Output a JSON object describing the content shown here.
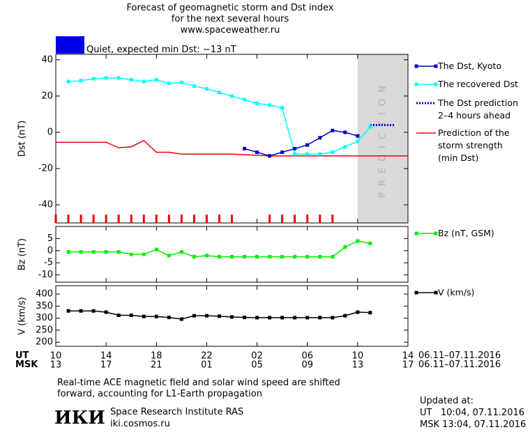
{
  "header": {
    "title_lines": [
      "Forecast of geomagnetic storm and Dst index",
      "for the next several hours",
      "www.spaceweather.ru"
    ],
    "status": "Quiet, expected min Dst: −13 nT",
    "status_color": "#0000ee"
  },
  "chart_data": [
    {
      "type": "line",
      "ylabel": "Dst (nT)",
      "xlim": [
        0,
        28
      ],
      "ylim": [
        -50,
        43
      ],
      "yticks": [
        -40,
        -20,
        0,
        20,
        40
      ],
      "shade": {
        "x": [
          24,
          28
        ],
        "label": "PREDICTION",
        "color": "#d9d9d9"
      },
      "hour_markers": {
        "color": "#ee0000",
        "x": [
          0,
          1,
          2,
          3,
          4,
          5,
          6,
          7,
          8,
          9,
          10,
          11,
          12,
          13,
          14,
          17,
          18,
          19,
          20,
          21,
          22
        ]
      },
      "series": [
        {
          "name": "The Dst, Kyoto",
          "color": "#0000cc",
          "markers": true,
          "style": "solid",
          "x": [
            15,
            16,
            17,
            18,
            19,
            20,
            21,
            22,
            23,
            24
          ],
          "values": [
            -9,
            -11,
            -13,
            -11,
            -9,
            -7,
            -3,
            1,
            0,
            -2
          ]
        },
        {
          "name": "The recovered Dst",
          "color": "#00ffff",
          "markers": true,
          "style": "solid",
          "x": [
            1,
            2,
            3,
            4,
            5,
            6,
            7,
            8,
            9,
            10,
            11,
            12,
            13,
            14,
            15,
            16,
            17,
            18,
            19,
            20,
            21,
            22,
            23,
            24,
            25
          ],
          "values": [
            28,
            28.5,
            29.5,
            30,
            30,
            29,
            28,
            29,
            27,
            27.5,
            25.5,
            24,
            22,
            20,
            18,
            16,
            15,
            13.5,
            -12,
            -12,
            -12,
            -11,
            -8,
            -5,
            3
          ]
        },
        {
          "name": "The Dst prediction\n2–4 hours ahead",
          "color": "#0000cc",
          "markers": false,
          "style": "dotted",
          "x": [
            25,
            27
          ],
          "values": [
            4,
            4
          ]
        },
        {
          "name": "Prediction of the\nstorm strength\n(min Dst)",
          "color": "#ee0000",
          "markers": false,
          "style": "solid",
          "x": [
            0,
            4,
            5,
            6,
            7,
            8,
            9,
            10,
            14,
            17,
            28
          ],
          "values": [
            -5.5,
            -5.5,
            -8.5,
            -8,
            -4.5,
            -11,
            -11,
            -12,
            -12,
            -13,
            -13
          ]
        }
      ]
    },
    {
      "type": "line",
      "ylabel": "Bz (nT)",
      "xlim": [
        0,
        28
      ],
      "ylim": [
        -13,
        10
      ],
      "yticks": [
        -10,
        -5,
        0,
        5
      ],
      "series": [
        {
          "name": "Bz (nT, GSM)",
          "color": "#00ee00",
          "markers": true,
          "style": "solid",
          "x": [
            1,
            2,
            3,
            4,
            5,
            6,
            7,
            8,
            9,
            10,
            11,
            12,
            13,
            14,
            15,
            16,
            17,
            18,
            19,
            20,
            21,
            22,
            23,
            24,
            25
          ],
          "values": [
            -0.5,
            -0.5,
            -0.5,
            -0.5,
            -0.5,
            -1.5,
            -1.5,
            0.5,
            -2,
            -0.5,
            -2.5,
            -2,
            -2.5,
            -2.5,
            -2.5,
            -2.5,
            -2.5,
            -2.5,
            -2.5,
            -2.5,
            -2.5,
            -2.5,
            1.5,
            4,
            3
          ]
        }
      ]
    },
    {
      "type": "line",
      "ylabel": "V (km/s)",
      "xlim": [
        0,
        28
      ],
      "ylim": [
        183,
        435
      ],
      "yticks": [
        200,
        250,
        300,
        350,
        400
      ],
      "xticks": [
        {
          "value": 0,
          "label": "10"
        },
        {
          "value": 4,
          "label": "14"
        },
        {
          "value": 8,
          "label": "18"
        },
        {
          "value": 12,
          "label": "22"
        },
        {
          "value": 16,
          "label": "02"
        },
        {
          "value": 20,
          "label": "06"
        },
        {
          "value": 24,
          "label": "10"
        },
        {
          "value": 28,
          "label": "14"
        }
      ],
      "msk_ticks": [
        "13",
        "17",
        "21",
        "01",
        "05",
        "09",
        "13",
        "17"
      ],
      "series": [
        {
          "name": "V (km/s)",
          "color": "#000000",
          "markers": true,
          "style": "solid",
          "x": [
            1,
            2,
            3,
            4,
            5,
            6,
            7,
            8,
            9,
            10,
            11,
            12,
            13,
            14,
            15,
            16,
            17,
            18,
            19,
            20,
            21,
            22,
            23,
            24,
            25
          ],
          "values": [
            330,
            330,
            330,
            325,
            312,
            312,
            307,
            307,
            303,
            296,
            310,
            310,
            308,
            305,
            303,
            302,
            302,
            302,
            302,
            302,
            302,
            302,
            310,
            325,
            323
          ]
        }
      ]
    }
  ],
  "time_axis": {
    "ut_label": "UT",
    "msk_label": "MSK",
    "date_range": "06.11–07.11.2016"
  },
  "footer": {
    "note": "Real-time ACE magnetic field and solar wind speed are shifted\nforward, accounting for L1-Earth propagation",
    "logo": "ИКИ",
    "institute": "Space Research Institute RAS",
    "site": "iki.cosmos.ru",
    "updated_title": "Updated at:",
    "updated_ut": "UT   10:04, 07.11.2016",
    "updated_msk": "MSK 13:04, 07.11.2016"
  }
}
